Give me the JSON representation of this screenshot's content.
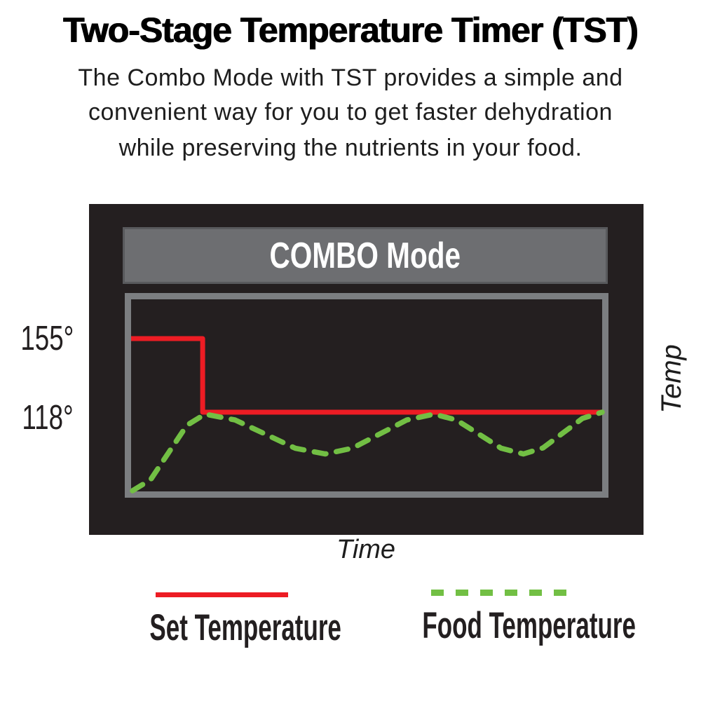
{
  "title": "Two-Stage Temperature Timer (TST)",
  "description": {
    "line1": "The Combo Mode with TST provides a simple and",
    "line2": "convenient way for you to get faster dehydration",
    "line3": "while preserving the nutrients in your food."
  },
  "chart": {
    "mode_banner": "COMBO Mode",
    "y_axis": {
      "tick_high": "155°",
      "tick_low": "118°",
      "axis_label": "Temp"
    },
    "x_axis": {
      "axis_label": "Time"
    },
    "colors": {
      "set_temperature": "#ed1c24",
      "food_temperature": "#72bf44",
      "panel_background": "#241f20",
      "banner_gray": "#6d6e71",
      "frame_gray": "#7c7e81",
      "banner_text": "#ffffff"
    }
  },
  "legend": [
    {
      "label": "Set Temperature",
      "color": "#ed1c24",
      "style": "solid"
    },
    {
      "label": "Food Temperature",
      "color": "#72bf44",
      "style": "dashed"
    }
  ],
  "chart_data": {
    "type": "line",
    "title": "COMBO Mode",
    "xlabel": "Time",
    "ylabel": "Temp",
    "yticks": [
      155,
      118
    ],
    "ylim": [
      75,
      165
    ],
    "x_range_normalized": [
      0,
      1
    ],
    "grid": false,
    "legend_position": "below",
    "series": [
      {
        "name": "Set Temperature",
        "color": "#ed1c24",
        "dash": "solid",
        "description": "Step function: holds 155° for first stage, drops to 118° and holds to end",
        "points": [
          [
            0,
            155
          ],
          [
            0.152,
            155
          ],
          [
            0.152,
            118
          ],
          [
            1,
            118
          ]
        ]
      },
      {
        "name": "Food Temperature",
        "color": "#72bf44",
        "dash": "dashed",
        "description": "Food temp rises from ~78° then oscillates ~97°–117° beneath the 118° set line",
        "points": [
          [
            0.003,
            78.5
          ],
          [
            0.0415,
            84.1
          ],
          [
            0.08,
            97.8
          ],
          [
            0.1185,
            111.4
          ],
          [
            0.157,
            117
          ],
          [
            0.2208,
            114.1
          ],
          [
            0.2845,
            107
          ],
          [
            0.3483,
            99.9
          ],
          [
            0.412,
            97
          ],
          [
            0.4698,
            99.9
          ],
          [
            0.5275,
            107
          ],
          [
            0.5853,
            114.1
          ],
          [
            0.643,
            117
          ],
          [
            0.6905,
            114.1
          ],
          [
            0.738,
            107
          ],
          [
            0.7855,
            99.9
          ],
          [
            0.833,
            97
          ],
          [
            0.8748,
            100.1
          ],
          [
            0.9165,
            107.5
          ],
          [
            0.9583,
            114.9
          ],
          [
            1.0,
            118
          ]
        ]
      }
    ]
  }
}
